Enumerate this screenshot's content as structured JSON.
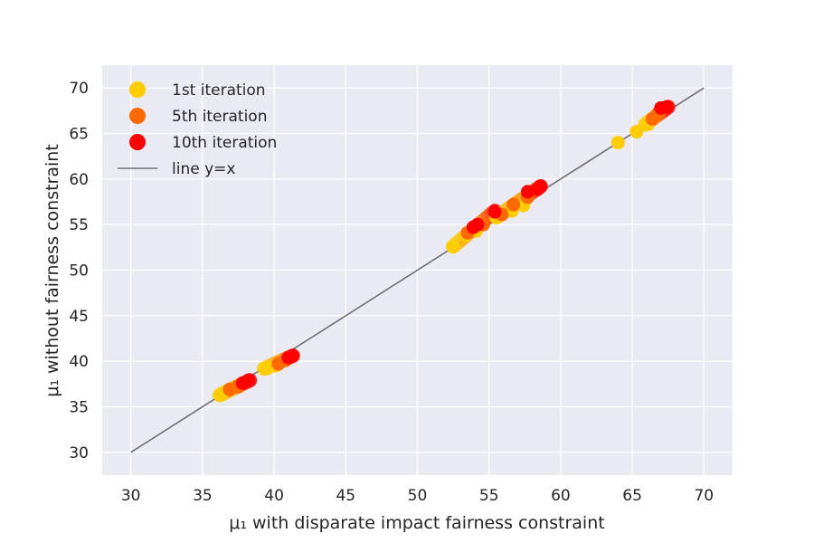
{
  "chart_data": {
    "type": "scatter",
    "xlabel": "μ₁ with disparate impact fairness constraint",
    "ylabel": "μ₁ without fairness constraint",
    "xlim": [
      28,
      72
    ],
    "ylim": [
      27.5,
      72.5
    ],
    "xticks": [
      "30",
      "35",
      "40",
      "45",
      "50",
      "55",
      "60",
      "65",
      "70"
    ],
    "yticks": [
      "30",
      "35",
      "40",
      "45",
      "50",
      "55",
      "60",
      "65",
      "70"
    ],
    "grid": true,
    "legend_position": "top-left",
    "colors": {
      "gradient_start": "#ffcc00",
      "gradient_end": "#ff0000",
      "line": "#707070",
      "background": "#eaeaf2"
    },
    "series": [
      {
        "name": "1st iteration",
        "color": "#ffcc00",
        "x": [
          36.3,
          37.0,
          39.5,
          40.1,
          52.5,
          53.4,
          54.1,
          55.6,
          56.6,
          57.4,
          64.0,
          65.3,
          66.1
        ],
        "y": [
          36.3,
          36.9,
          39.2,
          39.5,
          52.6,
          53.8,
          54.3,
          55.8,
          56.5,
          57.1,
          64.0,
          65.2,
          66.0
        ]
      },
      {
        "name": "5th iteration",
        "color": "#ff6a00",
        "x": [
          36.9,
          37.5,
          40.3,
          40.8,
          53.5,
          54.6,
          55.9,
          56.7,
          57.7,
          66.4,
          66.8
        ],
        "y": [
          36.9,
          37.2,
          39.7,
          40.1,
          54.1,
          55.0,
          56.1,
          57.2,
          58.0,
          66.6,
          67.2
        ]
      },
      {
        "name": "10th iteration",
        "color": "#ff0000",
        "x": [
          37.8,
          38.2,
          41.0,
          41.3,
          53.9,
          54.2,
          55.4,
          57.7,
          58.4,
          58.6,
          67.0,
          67.4
        ],
        "y": [
          37.6,
          37.9,
          40.4,
          40.6,
          54.7,
          55.0,
          56.4,
          58.6,
          58.9,
          59.2,
          67.8,
          67.9
        ]
      }
    ],
    "reference_line": {
      "name": "line y=x",
      "x": [
        30,
        70
      ],
      "y": [
        30,
        70
      ]
    },
    "trails": [
      {
        "x": [
          36.2,
          38.3
        ],
        "y": [
          36.3,
          37.9
        ]
      },
      {
        "x": [
          39.3,
          41.3
        ],
        "y": [
          39.2,
          40.6
        ]
      },
      {
        "x": [
          52.5,
          55.4
        ],
        "y": [
          52.6,
          56.5
        ]
      },
      {
        "x": [
          55.5,
          58.6
        ],
        "y": [
          55.8,
          59.2
        ]
      },
      {
        "x": [
          65.9,
          67.5
        ],
        "y": [
          66.0,
          67.9
        ]
      }
    ]
  }
}
